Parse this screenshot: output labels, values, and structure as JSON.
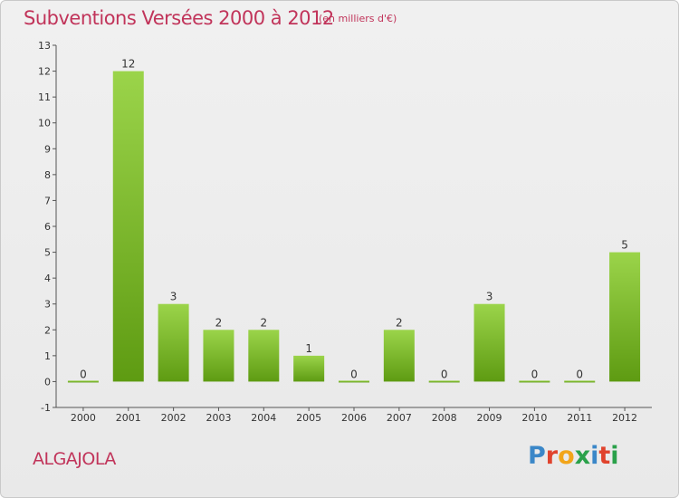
{
  "header": {
    "title": "Subventions Versées 2000 à 2012",
    "unit_note": "(en milliers d'€)"
  },
  "footer": {
    "place": "ALGAJOLA",
    "logo_text": "Proxiti",
    "logo_colors": [
      "#3b87c8",
      "#e0432d",
      "#f2a51a",
      "#2aa14a",
      "#3b87c8",
      "#e0432d",
      "#2aa14a"
    ]
  },
  "colors": {
    "accent": "#c1345a",
    "bar_top": "#9bd44a",
    "bar_bottom": "#5e9b12",
    "axis": "#555555"
  },
  "chart_data": {
    "type": "bar",
    "title": "Subventions Versées 2000 à 2012",
    "subtitle": "(en milliers d'€)",
    "categories": [
      "2000",
      "2001",
      "2002",
      "2003",
      "2004",
      "2005",
      "2006",
      "2007",
      "2008",
      "2009",
      "2010",
      "2011",
      "2012"
    ],
    "values": [
      0,
      12,
      3,
      2,
      2,
      1,
      0,
      2,
      0,
      3,
      0,
      0,
      5
    ],
    "ylim": [
      -1,
      13
    ],
    "yticks": [
      -1,
      0,
      1,
      2,
      3,
      4,
      5,
      6,
      7,
      8,
      9,
      10,
      11,
      12,
      13
    ],
    "grid": false,
    "legend": "none"
  }
}
